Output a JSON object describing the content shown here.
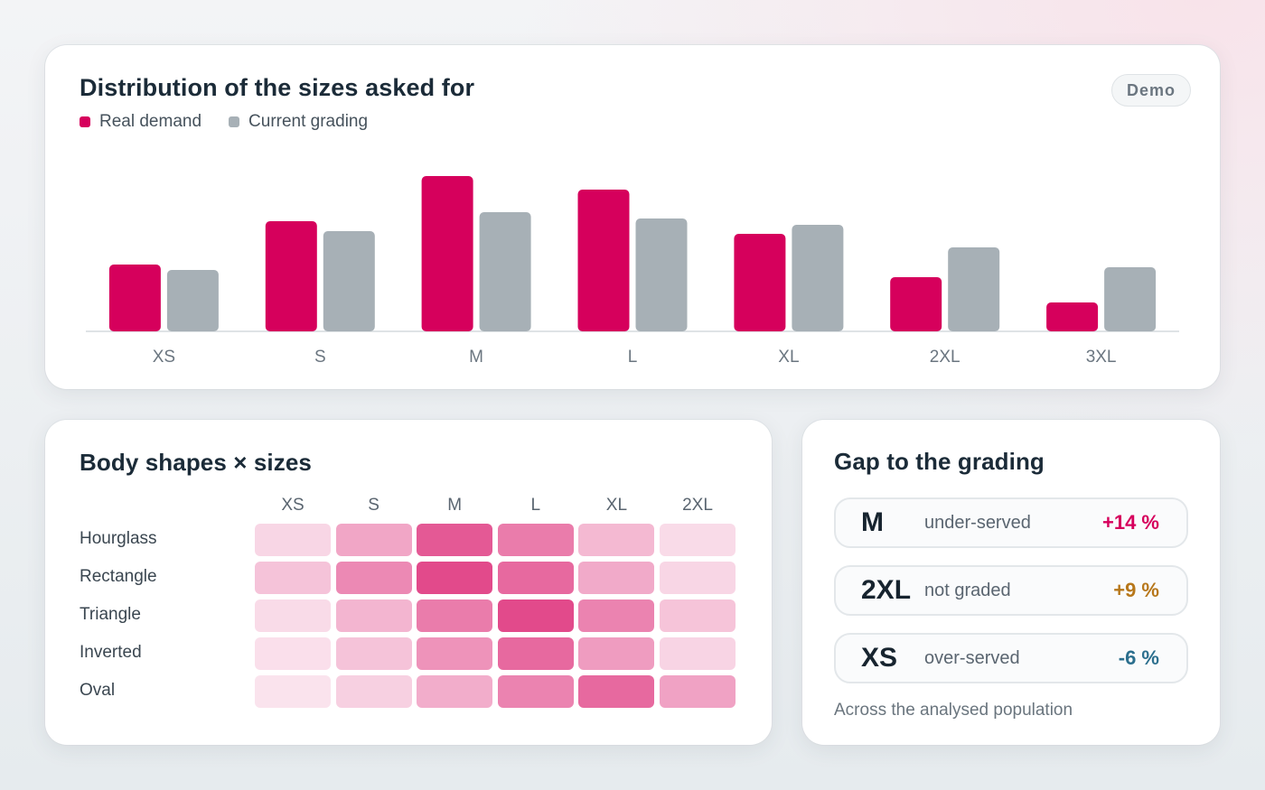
{
  "distribution": {
    "title": "Distribution of the sizes asked for",
    "badge": "Demo",
    "legend": [
      {
        "label": "Real demand",
        "color": "#d6005c"
      },
      {
        "label": "Current grading",
        "color": "#a7b0b6"
      }
    ]
  },
  "chart_data": [
    {
      "type": "bar",
      "title": "Distribution of the sizes asked for",
      "categories": [
        "XS",
        "S",
        "M",
        "L",
        "XL",
        "2XL",
        "3XL"
      ],
      "series": [
        {
          "name": "Real demand",
          "color": "#d6005c",
          "values": [
            7.4,
            12.2,
            17.2,
            15.7,
            10.8,
            6.0,
            3.2
          ]
        },
        {
          "name": "Current grading",
          "color": "#a7b0b6",
          "values": [
            6.8,
            11.1,
            13.2,
            12.5,
            11.8,
            9.3,
            7.1
          ]
        }
      ],
      "grid": false,
      "legend_position": "top-left"
    },
    {
      "type": "heatmap",
      "title": "Body shapes × sizes",
      "x_categories": [
        "XS",
        "S",
        "M",
        "L",
        "XL",
        "2XL"
      ],
      "y_categories": [
        "Hourglass",
        "Rectangle",
        "Triangle",
        "Inverted",
        "Oval"
      ],
      "values": [
        [
          0.15,
          0.4,
          0.8,
          0.62,
          0.3,
          0.12
        ],
        [
          0.25,
          0.55,
          0.88,
          0.72,
          0.38,
          0.15
        ],
        [
          0.12,
          0.32,
          0.62,
          0.88,
          0.58,
          0.24
        ],
        [
          0.1,
          0.25,
          0.5,
          0.72,
          0.45,
          0.16
        ],
        [
          0.08,
          0.18,
          0.36,
          0.58,
          0.72,
          0.42
        ]
      ],
      "color": "#d6005c"
    }
  ],
  "heatmap": {
    "title": "Body shapes × sizes"
  },
  "gap": {
    "title": "Gap to the grading",
    "rows": [
      {
        "size": "M",
        "desc": "under-served",
        "value": "+14 %",
        "color": "#d6005c"
      },
      {
        "size": "2XL",
        "desc": "not graded",
        "value": "+9 %",
        "color": "#b7771a"
      },
      {
        "size": "XS",
        "desc": "over-served",
        "value": "-6 %",
        "color": "#2c6f8e"
      }
    ],
    "footnote": "Across the analysed population"
  }
}
